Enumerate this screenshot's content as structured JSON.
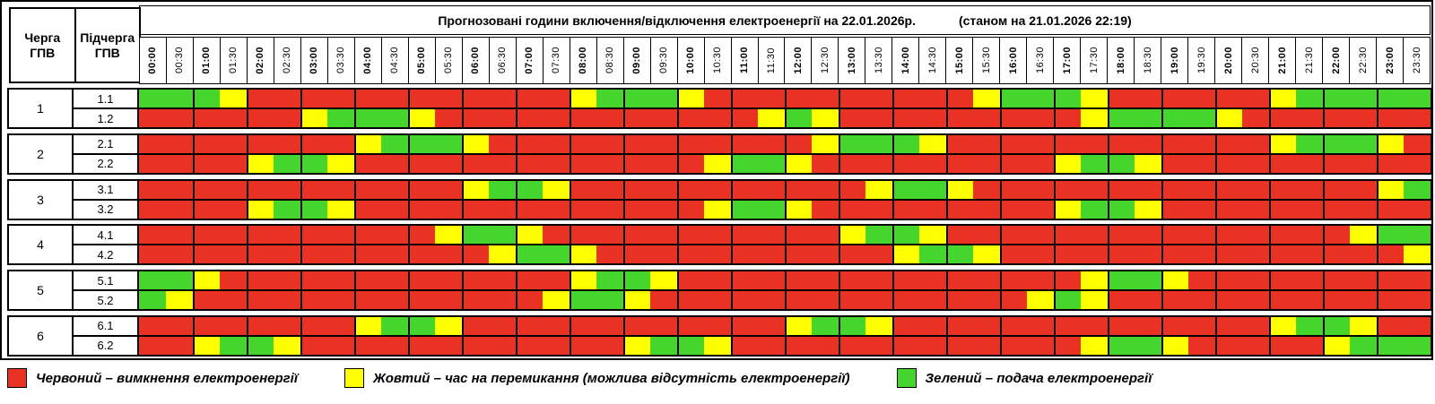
{
  "title": {
    "main": "Прогнозовані години включення/відключення електроенергії на 22.01.2026р.",
    "asof": "(станом на 21.01.2026 22:19)"
  },
  "header": {
    "queue_label": "Черга\nГПВ",
    "subqueue_label": "Підчерга\nГПВ"
  },
  "columns": [
    "00:00",
    "00:30",
    "01:00",
    "01:30",
    "02:00",
    "02:30",
    "03:00",
    "03:30",
    "04:00",
    "04:30",
    "05:00",
    "05:30",
    "06:00",
    "06:30",
    "07:00",
    "07:30",
    "08:00",
    "08:30",
    "09:00",
    "09:30",
    "10:00",
    "10:30",
    "11:00",
    "11:30",
    "12:00",
    "12:30",
    "13:00",
    "13:30",
    "14:00",
    "14:30",
    "15:00",
    "15:30",
    "16:00",
    "16:30",
    "17:00",
    "17:30",
    "18:00",
    "18:30",
    "19:00",
    "19:30",
    "20:00",
    "20:30",
    "21:00",
    "21:30",
    "22:00",
    "22:30",
    "23:00",
    "23:30"
  ],
  "groups": [
    {
      "queue": "1",
      "rows": [
        {
          "label": "1.1",
          "cells": "GGGYRRRRRRRRRRRRYGGGYRRRRRRRRRRYGGGYRRRRRRYGGGGG"
        },
        {
          "label": "1.2",
          "cells": "RRRRRRYGGGYRRRRRRRRRRRRYGYRRRRRRRRRYGGGGYRRRRRRR"
        }
      ]
    },
    {
      "queue": "2",
      "rows": [
        {
          "label": "2.1",
          "cells": "RRRRRRRRYGGGYRRRRRRRRRRRRYGGGYRRRRRRRRRRRRYGGGYR"
        },
        {
          "label": "2.2",
          "cells": "RRRRYGGYRRRRRRRRRRRRRYGGYRRRRRRRRRYGGYRRRRRRRRRR"
        }
      ]
    },
    {
      "queue": "3",
      "rows": [
        {
          "label": "3.1",
          "cells": "RRRRRRRRRRRRYGGYRRRRRRRRRRRYGGYRRRRRRRRRRRRRRRYG"
        },
        {
          "label": "3.2",
          "cells": "RRRRYGGYRRRRRRRRRRRRRYGGYRRRRRRRRRYGGYRRRRRRRRRR"
        }
      ]
    },
    {
      "queue": "4",
      "rows": [
        {
          "label": "4.1",
          "cells": "RRRRRRRRRRRYGGYRRRRRRRRRRRYGGYRRRRRRRRRRRRRRRYGG"
        },
        {
          "label": "4.2",
          "cells": "RRRRRRRRRRRRRYGGYRRRRRRRRRRRYGGYRRRRRRRRRRRRRRRY"
        }
      ]
    },
    {
      "queue": "5",
      "rows": [
        {
          "label": "5.1",
          "cells": "GGYRRRRRRRRRRRRRYGGYRRRRRRRRRRRRRRRYGGYRRRRRRRRR"
        },
        {
          "label": "5.2",
          "cells": "GYRRRRRRRRRRRRRYGGYRRRRRRRRRRRRRRYGYRRRRRRRRRRRR"
        }
      ]
    },
    {
      "queue": "6",
      "rows": [
        {
          "label": "6.1",
          "cells": "RRRRRRRRYGGYRRRRRRRRRRRRYGGYRRRRRRRRRRRRRRYGGYRR"
        },
        {
          "label": "6.2",
          "cells": "RRYGGYRRRRRRRRRRRRYGGYRRRRRRRRRRRRRYGGYRRRRRYGGG"
        }
      ]
    }
  ],
  "cell_colors": {
    "R": "#e93223",
    "Y": "#ffff00",
    "G": "#44d62c"
  },
  "legend": [
    {
      "key": "R",
      "label": "Червоний – вимкнення електроенергії"
    },
    {
      "key": "Y",
      "label": "Жовтий – час на перемикання (можлива відсутність електроенергії)"
    },
    {
      "key": "G",
      "label": "Зелений – подача електроенергії"
    }
  ]
}
